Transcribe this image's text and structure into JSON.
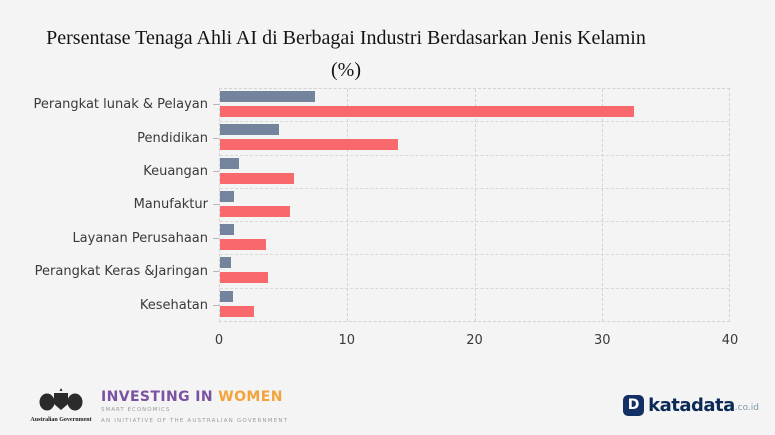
{
  "title": {
    "line1": "Persentase Tenaga Ahli AI di Berbagai Industri Berdasarkan Jenis Kelamin",
    "line2": "(%)"
  },
  "chart_data": {
    "type": "bar",
    "orientation": "horizontal",
    "title": "Persentase Tenaga Ahli AI di Berbagai Industri Berdasarkan Jenis Kelamin (%)",
    "categories": [
      "Perangkat lunak & Pelayan",
      "Pendidikan",
      "Keuangan",
      "Manufaktur",
      "Layanan Perusahaan",
      "Perangkat Keras &Jaringan",
      "Kesehatan"
    ],
    "series": [
      {
        "name": "series-1-blue",
        "color": "#74849d",
        "values": [
          7.5,
          4.6,
          1.5,
          1.1,
          1.1,
          0.9,
          1.0
        ]
      },
      {
        "name": "series-2-red",
        "color": "#f8696d",
        "values": [
          32.5,
          14.0,
          5.8,
          5.5,
          3.6,
          3.8,
          2.7
        ]
      }
    ],
    "xlim": [
      0,
      40
    ],
    "xticks": [
      0,
      10,
      20,
      30,
      40
    ],
    "grid": true,
    "legend": false
  },
  "footer": {
    "investing_in_women": {
      "crest_caption": "Australian Government",
      "title_primary": "INVESTING IN ",
      "title_accent": "WOMEN",
      "title_primary_color": "#7b51a2",
      "title_accent_color": "#f2a43b",
      "subtitle": "SMART ECONOMICS",
      "tagline": "AN INITIATIVE OF THE AUSTRALIAN GOVERNMENT"
    },
    "katadata": {
      "icon_letter": "D",
      "brand": "katadata",
      "domain_suffix": ".co.id"
    }
  },
  "colors": {
    "background": "#f4f4f5",
    "grid": "#d2d2d2",
    "axis_text": "#3a3a3a"
  }
}
